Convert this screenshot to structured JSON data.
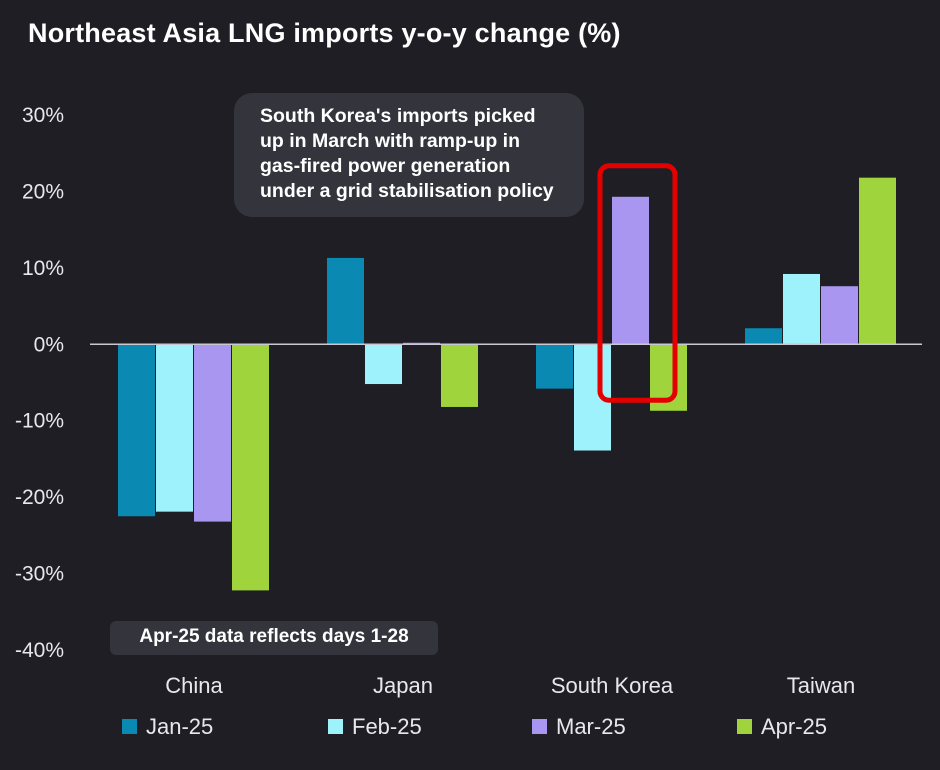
{
  "chart_data": {
    "type": "bar",
    "title": "Northeast Asia LNG imports y-o-y change (%)",
    "categories": [
      "China",
      "Japan",
      "South Korea",
      "Taiwan"
    ],
    "series": [
      {
        "name": "Jan-25",
        "values": [
          -22.5,
          11.3,
          -5.8,
          2.1
        ],
        "color": "#0a8ab2"
      },
      {
        "name": "Feb-25",
        "values": [
          -21.9,
          -5.2,
          -13.9,
          9.2
        ],
        "color": "#9ef2fb"
      },
      {
        "name": "Mar-25",
        "values": [
          -23.2,
          0.2,
          19.3,
          7.6
        ],
        "color": "#a996f0"
      },
      {
        "name": "Apr-25",
        "values": [
          -32.2,
          -8.2,
          -8.7,
          21.8
        ],
        "color": "#9fd43c"
      }
    ],
    "yticks": [
      "30%",
      "20%",
      "10%",
      "0%",
      "-10%",
      "-20%",
      "-30%",
      "-40%"
    ],
    "ylim": [
      -40,
      30
    ],
    "grid": false,
    "legend_position": "bottom",
    "highlight": {
      "category": "South Korea",
      "series": "Mar-25",
      "color": "#e50000"
    },
    "annotation": [
      "South Korea's imports picked",
      "up in March with ramp-up in",
      "gas-fired power generation",
      "under a grid stabilisation policy"
    ],
    "note": "Apr-25 data reflects days 1-28"
  }
}
